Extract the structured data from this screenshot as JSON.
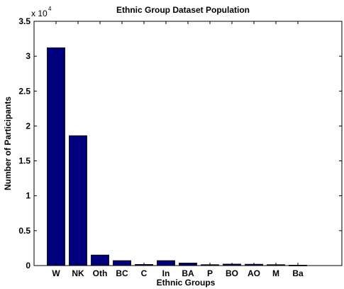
{
  "chart_data": {
    "type": "bar",
    "title": "Ethnic Group Dataset Population",
    "xlabel": "Ethnic Groups",
    "ylabel": "Number of Participants",
    "y_multiplier_base": "x 10",
    "y_multiplier_exponent": "4",
    "categories": [
      "W",
      "NK",
      "Oth",
      "BC",
      "C",
      "In",
      "BA",
      "P",
      "BO",
      "AO",
      "M",
      "Ba"
    ],
    "values": [
      31200,
      18600,
      1500,
      700,
      150,
      700,
      350,
      120,
      200,
      180,
      120,
      50
    ],
    "ylim": [
      0,
      35000
    ],
    "xlim": [
      0,
      14
    ],
    "y_ticks": [
      {
        "value": 0,
        "label": "0"
      },
      {
        "value": 5000,
        "label": "0.5"
      },
      {
        "value": 10000,
        "label": "1"
      },
      {
        "value": 15000,
        "label": "1.5"
      },
      {
        "value": 20000,
        "label": "2"
      },
      {
        "value": 25000,
        "label": "2.5"
      },
      {
        "value": 30000,
        "label": "3"
      },
      {
        "value": 35000,
        "label": "3.5"
      }
    ],
    "bar_color": "#00007f",
    "grid": false,
    "legend": "none"
  }
}
